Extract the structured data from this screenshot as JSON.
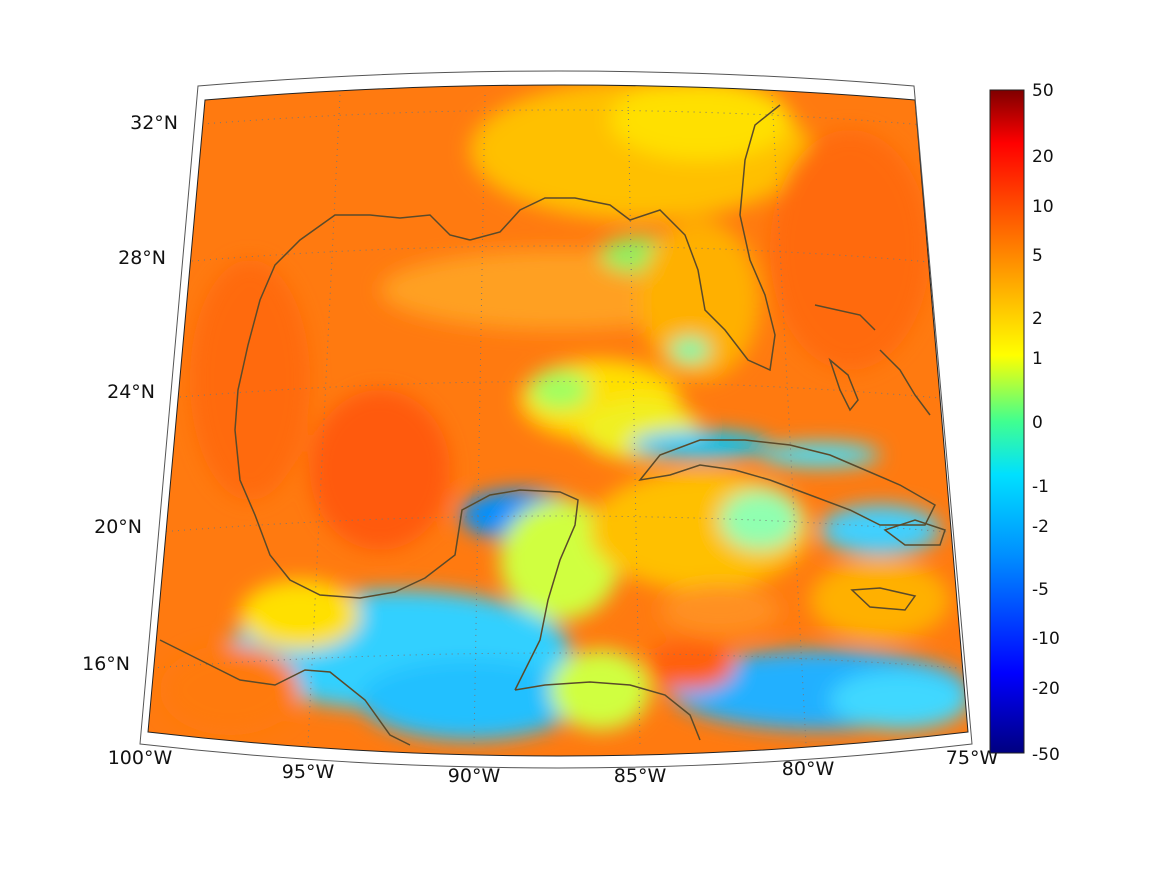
{
  "map": {
    "projection": "conic",
    "lon_labels": [
      "100°W",
      "95°W",
      "90°W",
      "85°W",
      "80°W",
      "75°W"
    ],
    "lat_labels": [
      "16°N",
      "20°N",
      "24°N",
      "28°N",
      "32°N"
    ],
    "lon_range": [
      -100,
      -75
    ],
    "lat_range": [
      14,
      33
    ],
    "grid": "dotted",
    "coastline_color": "#5a4a2a"
  },
  "colorbar": {
    "scale": "symmetric-log",
    "tick_labels": [
      "50",
      "20",
      "10",
      "5",
      "2",
      "1",
      "0",
      "-1",
      "-2",
      "-5",
      "-10",
      "-20",
      "-50"
    ],
    "colors": [
      "#7f0000",
      "#ff0000",
      "#ff7a00",
      "#ffff00",
      "#00ff88",
      "#00e0ff",
      "#0060ff",
      "#000080"
    ]
  }
}
